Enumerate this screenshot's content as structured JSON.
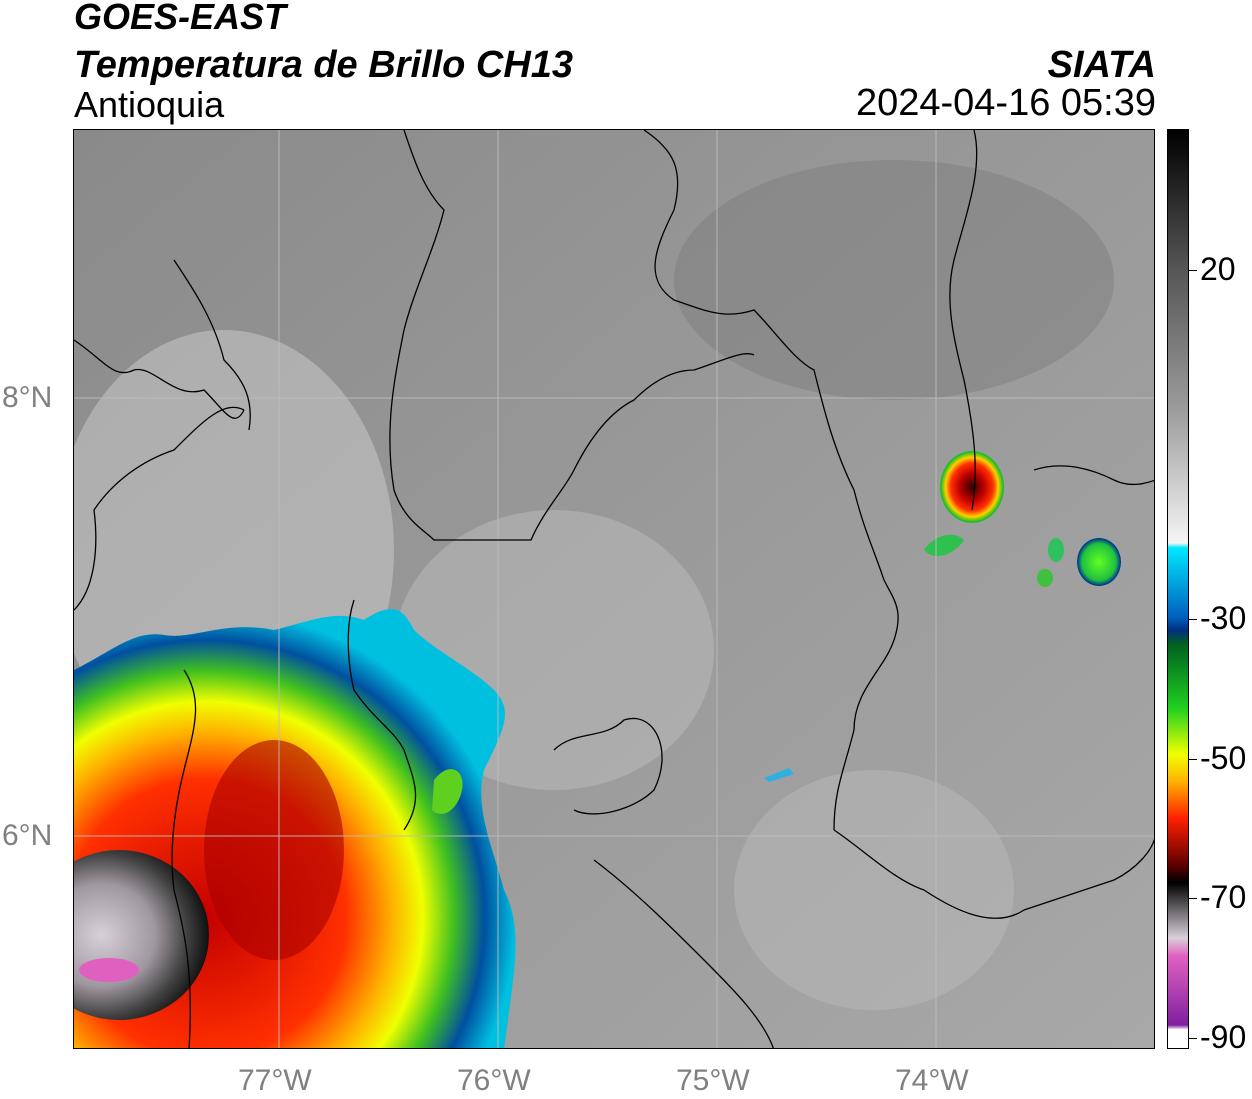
{
  "header": {
    "line1": "GOES-EAST",
    "line2": "Temperatura de Brillo CH13",
    "line3": "Antioquia",
    "brand": "SIATA",
    "timestamp": "2024-04-16 05:39"
  },
  "map": {
    "lat_labels": [
      "8°N",
      "6°N"
    ],
    "lon_labels": [
      "77°W",
      "76°W",
      "75°W",
      "74°W"
    ]
  },
  "colorbar": {
    "ticks": [
      "20",
      "-30",
      "-50",
      "-70",
      "-90"
    ]
  }
}
